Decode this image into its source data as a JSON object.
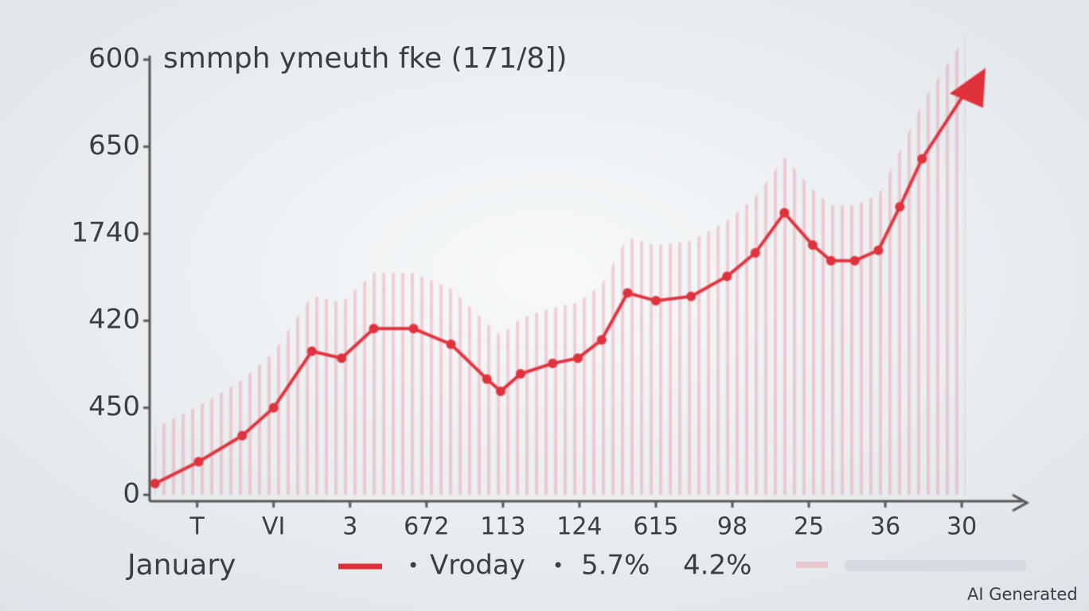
{
  "chart_data": {
    "type": "line",
    "title": "smmph ymeuth fke (171/8])",
    "xlabel": "January",
    "annotations": [
      "5.7%",
      "4.2%"
    ],
    "watermark": "AI Generated",
    "xlim": [
      0.4,
      11.8
    ],
    "xticks": [
      {
        "value": 1,
        "label": "T"
      },
      {
        "value": 2,
        "label": "VI"
      },
      3,
      {
        "value": 4,
        "label": "672"
      },
      {
        "value": 5,
        "label": "113"
      },
      {
        "value": 6,
        "label": "124"
      },
      {
        "value": 7,
        "label": "615"
      },
      {
        "value": 8,
        "label": "98"
      },
      {
        "value": 9,
        "label": "25"
      },
      {
        "value": 10,
        "label": "36"
      },
      {
        "value": 11,
        "label": "30"
      }
    ],
    "ylim": [
      0,
      500
    ],
    "yticks": [
      0,
      {
        "value": 100,
        "label": "450"
      },
      {
        "value": 200,
        "label": "420"
      },
      {
        "value": 300,
        "label": "1740"
      },
      {
        "value": 400,
        "label": "650"
      },
      {
        "value": 500,
        "label": "600"
      }
    ],
    "series": [
      {
        "name": "Vroday",
        "color": "#e0303c",
        "x": [
          0.45,
          1.02,
          1.59,
          2.0,
          2.5,
          2.89,
          3.31,
          3.83,
          4.32,
          4.79,
          4.97,
          5.23,
          5.65,
          5.98,
          6.29,
          6.63,
          7.0,
          7.46,
          7.93,
          8.3,
          8.68,
          9.05,
          9.29,
          9.6,
          9.91,
          10.19,
          10.48,
          11.05
        ],
        "values": [
          13,
          38,
          68,
          100,
          165,
          157,
          191,
          191,
          173,
          133,
          119,
          139,
          151,
          157,
          178,
          232,
          223,
          228,
          251,
          278,
          324,
          287,
          269,
          269,
          281,
          331,
          386,
          463
        ]
      }
    ]
  }
}
